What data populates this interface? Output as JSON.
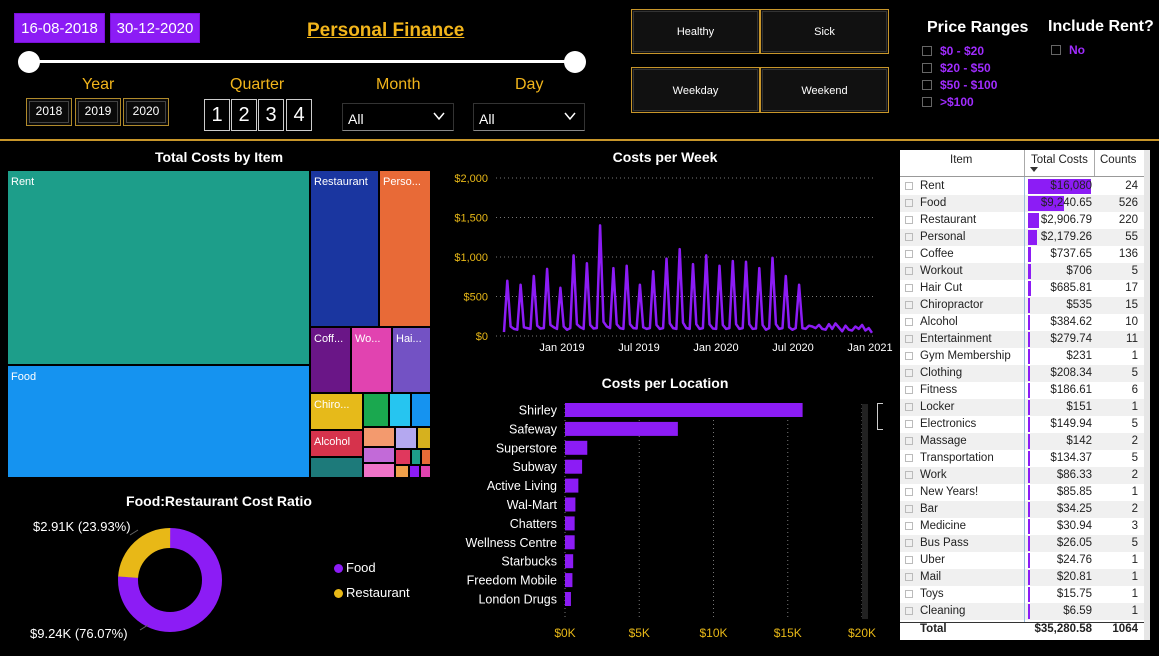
{
  "header": {
    "date_start": "16-08-2018",
    "date_end": "30-12-2020",
    "title": "Personal Finance",
    "year_label": "Year",
    "years": [
      "2018",
      "2019",
      "2020"
    ],
    "quarter_label": "Quarter",
    "quarters": [
      "1",
      "2",
      "3",
      "4"
    ],
    "month_label": "Month",
    "month_value": "All",
    "day_label": "Day",
    "day_value": "All",
    "buttons": [
      "Healthy",
      "Sick",
      "Weekday",
      "Weekend"
    ],
    "price_ranges_label": "Price Ranges",
    "price_ranges": [
      "$0 - $20",
      "$20 - $50",
      "$50 - $100",
      ">$100"
    ],
    "include_rent_label": "Include Rent?",
    "include_rent_option": "No"
  },
  "colors": {
    "accent": "#8c1cf5",
    "gold": "#f2b51b",
    "divider": "#c8962a"
  },
  "treemap": {
    "title": "Total Costs by Item",
    "labels": {
      "rent": "Rent",
      "food": "Food",
      "restaurant": "Restaurant",
      "personal": "Perso...",
      "coffee": "Coff...",
      "workout": "Wo...",
      "haircut": "Hai...",
      "chiro": "Chiro...",
      "alcohol": "Alcohol"
    }
  },
  "donut": {
    "title": "Food:Restaurant Cost Ratio",
    "label_restaurant": "$2.91K (23.93%)",
    "label_food": "$9.24K (76.07%)",
    "legend_food": "Food",
    "legend_restaurant": "Restaurant",
    "food_share": 76.07,
    "restaurant_share": 23.93
  },
  "chart_data": [
    {
      "type": "line",
      "title": "Costs per Week",
      "y_ticks": [
        "$2,000",
        "$1,500",
        "$1,000",
        "$500",
        "$0"
      ],
      "ylim": [
        0,
        2000
      ],
      "x_ticks": [
        "Jan 2019",
        "Jul 2019",
        "Jan 2020",
        "Jul 2020",
        "Jan 2021"
      ],
      "values": [
        50,
        700,
        120,
        90,
        80,
        650,
        110,
        100,
        90,
        760,
        130,
        95,
        100,
        850,
        140,
        110,
        90,
        610,
        120,
        80,
        100,
        1020,
        150,
        110,
        90,
        920,
        140,
        95,
        100,
        1400,
        180,
        120,
        100,
        860,
        150,
        100,
        90,
        890,
        150,
        100,
        95,
        650,
        110,
        90,
        100,
        820,
        140,
        90,
        100,
        980,
        160,
        100,
        90,
        1100,
        170,
        100,
        90,
        910,
        150,
        90,
        100,
        1020,
        150,
        95,
        90,
        890,
        140,
        90,
        100,
        950,
        150,
        90,
        100,
        940,
        150,
        90,
        95,
        860,
        140,
        80,
        100,
        990,
        150,
        90,
        100,
        760,
        110,
        80,
        100,
        650,
        100,
        90,
        130,
        120,
        100,
        140,
        90,
        80,
        150,
        90,
        160,
        110,
        60,
        130,
        80,
        70,
        120,
        90,
        140,
        70,
        100,
        40
      ]
    },
    {
      "type": "bar",
      "title": "Costs per Location",
      "categories": [
        "Shirley",
        "Safeway",
        "Superstore",
        "Subway",
        "Active Living",
        "Wal-Mart",
        "Chatters",
        "Wellness Centre",
        "Starbucks",
        "Freedom Mobile",
        "London Drugs"
      ],
      "values": [
        16000,
        7600,
        1500,
        1150,
        900,
        700,
        650,
        650,
        550,
        500,
        400
      ],
      "x_ticks": [
        "$0K",
        "$5K",
        "$10K",
        "$15K",
        "$20K"
      ],
      "xlim": [
        0,
        20000
      ]
    }
  ],
  "table": {
    "headers": [
      "Item",
      "Total Costs",
      "Counts"
    ],
    "max_cost": 16080,
    "rows": [
      {
        "item": "Rent",
        "cost": "$16,080",
        "count": "24",
        "value": 16080
      },
      {
        "item": "Food",
        "cost": "$9,240.65",
        "count": "526",
        "value": 9240.65
      },
      {
        "item": "Restaurant",
        "cost": "$2,906.79",
        "count": "220",
        "value": 2906.79
      },
      {
        "item": "Personal",
        "cost": "$2,179.26",
        "count": "55",
        "value": 2179.26
      },
      {
        "item": "Coffee",
        "cost": "$737.65",
        "count": "136",
        "value": 737.65
      },
      {
        "item": "Workout",
        "cost": "$706",
        "count": "5",
        "value": 706
      },
      {
        "item": "Hair Cut",
        "cost": "$685.81",
        "count": "17",
        "value": 685.81
      },
      {
        "item": "Chiropractor",
        "cost": "$535",
        "count": "15",
        "value": 535
      },
      {
        "item": "Alcohol",
        "cost": "$384.62",
        "count": "10",
        "value": 384.62
      },
      {
        "item": "Entertainment",
        "cost": "$279.74",
        "count": "11",
        "value": 279.74
      },
      {
        "item": "Gym Membership",
        "cost": "$231",
        "count": "1",
        "value": 231
      },
      {
        "item": "Clothing",
        "cost": "$208.34",
        "count": "5",
        "value": 208.34
      },
      {
        "item": "Fitness",
        "cost": "$186.61",
        "count": "6",
        "value": 186.61
      },
      {
        "item": "Locker",
        "cost": "$151",
        "count": "1",
        "value": 151
      },
      {
        "item": "Electronics",
        "cost": "$149.94",
        "count": "5",
        "value": 149.94
      },
      {
        "item": "Massage",
        "cost": "$142",
        "count": "2",
        "value": 142
      },
      {
        "item": "Transportation",
        "cost": "$134.37",
        "count": "5",
        "value": 134.37
      },
      {
        "item": "Work",
        "cost": "$86.33",
        "count": "2",
        "value": 86.33
      },
      {
        "item": "New Years!",
        "cost": "$85.85",
        "count": "1",
        "value": 85.85
      },
      {
        "item": "Bar",
        "cost": "$34.25",
        "count": "2",
        "value": 34.25
      },
      {
        "item": "Medicine",
        "cost": "$30.94",
        "count": "3",
        "value": 30.94
      },
      {
        "item": "Bus Pass",
        "cost": "$26.05",
        "count": "5",
        "value": 26.05
      },
      {
        "item": "Uber",
        "cost": "$24.76",
        "count": "1",
        "value": 24.76
      },
      {
        "item": "Mail",
        "cost": "$20.81",
        "count": "1",
        "value": 20.81
      },
      {
        "item": "Toys",
        "cost": "$15.75",
        "count": "1",
        "value": 15.75
      },
      {
        "item": "Cleaning",
        "cost": "$6.59",
        "count": "1",
        "value": 6.59
      }
    ],
    "total_label": "Total",
    "total_cost": "$35,280.58",
    "total_count": "1064"
  }
}
